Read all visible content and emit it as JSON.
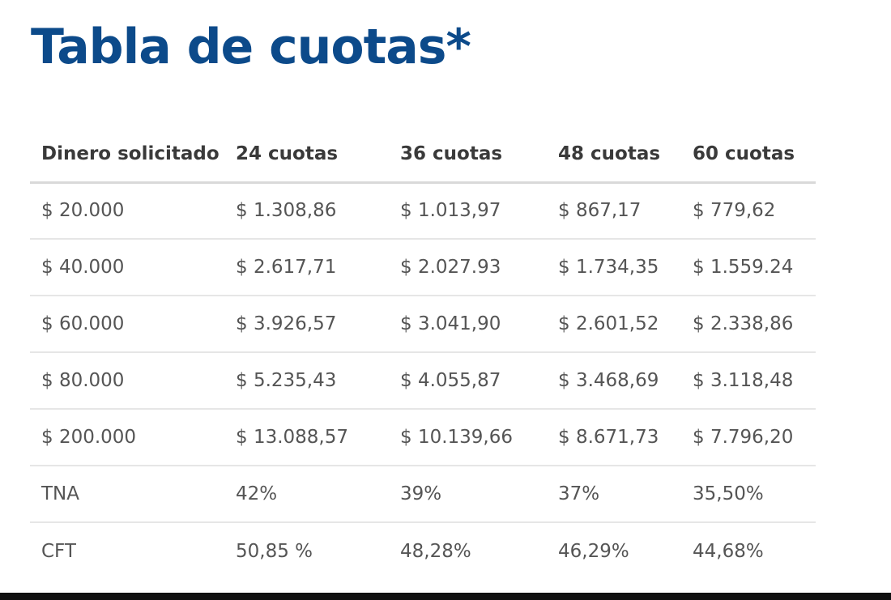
{
  "title": "Tabla de cuotas*",
  "table": {
    "headers": [
      "Dinero solicitado",
      "24 cuotas",
      "36 cuotas",
      "48 cuotas",
      "60 cuotas"
    ],
    "rows": [
      [
        "$ 20.000",
        "$ 1.308,86",
        "$ 1.013,97",
        "$ 867,17",
        "$ 779,62"
      ],
      [
        "$ 40.000",
        "$ 2.617,71",
        "$ 2.027.93",
        "$ 1.734,35",
        "$ 1.559.24"
      ],
      [
        "$ 60.000",
        "$ 3.926,57",
        "$ 3.041,90",
        "$ 2.601,52",
        "$ 2.338,86"
      ],
      [
        "$ 80.000",
        "$ 5.235,43",
        "$ 4.055,87",
        "$ 3.468,69",
        "$ 3.118,48"
      ],
      [
        "$ 200.000",
        "$ 13.088,57",
        "$ 10.139,66",
        "$ 8.671,73",
        "$ 7.796,20"
      ],
      [
        "TNA",
        "42%",
        "39%",
        "37%",
        "35,50%"
      ],
      [
        "CFT",
        "50,85 %",
        "48,28%",
        "46,29%",
        "44,68%"
      ]
    ]
  },
  "colors": {
    "title": "#0c4a8a",
    "header_text": "#3a3a3a",
    "cell_text": "#555555",
    "rule": "#e6e6e6"
  }
}
